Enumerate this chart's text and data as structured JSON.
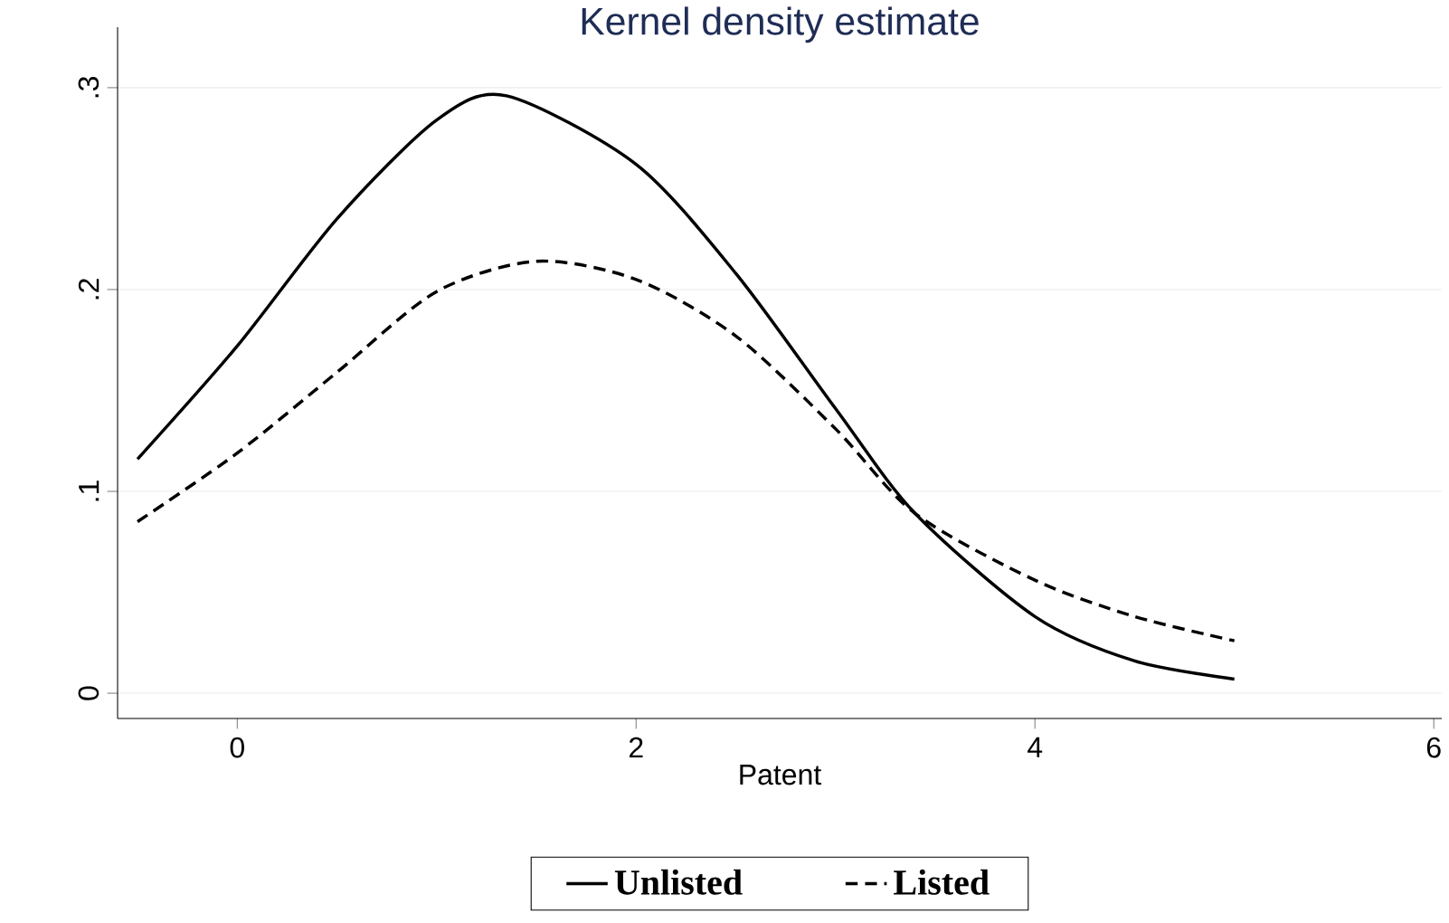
{
  "chart_data": {
    "type": "line",
    "title": "Kernel density estimate",
    "xlabel": "Patent",
    "xlim": [
      -0.6,
      6.04
    ],
    "ylim": [
      -0.0125,
      0.33
    ],
    "xticks": [
      0,
      2,
      4,
      6
    ],
    "yticks": [
      0,
      {
        "value": 0.1,
        "label": ".1"
      },
      {
        "value": 0.2,
        "label": ".2"
      },
      {
        "value": 0.3,
        "label": ".3"
      }
    ],
    "grid": "y",
    "legend": "bottom",
    "series": [
      {
        "name": "Unlisted",
        "color": "#000000",
        "line_style": "solid",
        "x": [
          -0.5,
          0,
          0.5,
          1,
          1.35,
          2,
          2.5,
          3,
          3.4,
          4,
          4.5,
          5
        ],
        "values": [
          0.116,
          0.172,
          0.235,
          0.284,
          0.296,
          0.262,
          0.208,
          0.141,
          0.089,
          0.038,
          0.016,
          0.007
        ]
      },
      {
        "name": "Listed",
        "color": "#000000",
        "line_style": "dashed",
        "x": [
          -0.5,
          0,
          0.5,
          1,
          1.5,
          2,
          2.5,
          3,
          3.4,
          4,
          4.5,
          5
        ],
        "values": [
          0.085,
          0.119,
          0.159,
          0.199,
          0.214,
          0.205,
          0.177,
          0.131,
          0.089,
          0.056,
          0.038,
          0.026
        ]
      }
    ]
  }
}
